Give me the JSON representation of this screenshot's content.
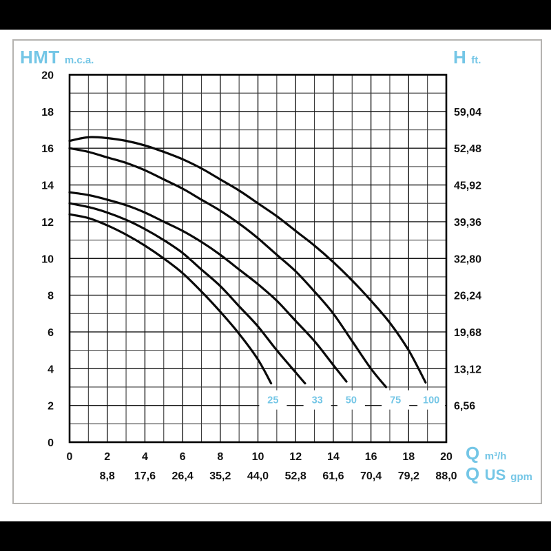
{
  "colors": {
    "accent": "#74c6e6",
    "curve": "#0a0a0a",
    "grid_minor": "#3a3a3a",
    "grid_major": "#161616",
    "plot_border": "#000000",
    "tick_text": "#111111",
    "frame_border": "#b5b3b0",
    "letterbox": "#000000",
    "background": "#ffffff"
  },
  "chart_data": {
    "type": "line",
    "description": "Pump head vs flow curves",
    "x_axis": {
      "unit": {
        "big": "Q",
        "small": "m³/h"
      },
      "range": [
        0,
        20
      ],
      "grid_step": 1,
      "ticks": [
        0,
        2,
        4,
        6,
        8,
        10,
        12,
        14,
        16,
        18,
        20
      ]
    },
    "x_axis_secondary": {
      "unit": {
        "big": "Q",
        "mid": "US",
        "small": "gpm"
      },
      "ticks": [
        {
          "q": 2,
          "label": "8,8"
        },
        {
          "q": 4,
          "label": "17,6"
        },
        {
          "q": 6,
          "label": "26,4"
        },
        {
          "q": 8,
          "label": "35,2"
        },
        {
          "q": 10,
          "label": "44,0"
        },
        {
          "q": 12,
          "label": "52,8"
        },
        {
          "q": 14,
          "label": "61,6"
        },
        {
          "q": 16,
          "label": "70,4"
        },
        {
          "q": 18,
          "label": "79,2"
        },
        {
          "q": 20,
          "label": "88,0"
        }
      ]
    },
    "y_axis_left": {
      "unit": {
        "big": "HMT",
        "small": "m.c.a."
      },
      "range": [
        0,
        20
      ],
      "grid_step": 1,
      "ticks": [
        20,
        18,
        16,
        14,
        12,
        10,
        8,
        6,
        4,
        2,
        0
      ]
    },
    "y_axis_right": {
      "unit": {
        "big": "H",
        "small": "ft."
      },
      "ticks": [
        {
          "h": 18,
          "label": "59,04"
        },
        {
          "h": 16,
          "label": "52,48"
        },
        {
          "h": 14,
          "label": "45,92"
        },
        {
          "h": 12,
          "label": "39,36"
        },
        {
          "h": 10,
          "label": "32,80"
        },
        {
          "h": 8,
          "label": "26,24"
        },
        {
          "h": 6,
          "label": "19,68"
        },
        {
          "h": 4,
          "label": "13,12"
        },
        {
          "h": 2,
          "label": "6,56"
        }
      ]
    },
    "series": [
      {
        "name": "25",
        "label_pos": [
          10.8,
          2.3
        ],
        "points": [
          [
            0,
            12.4
          ],
          [
            1,
            12.2
          ],
          [
            2,
            11.8
          ],
          [
            3,
            11.3
          ],
          [
            4,
            10.7
          ],
          [
            5,
            10.0
          ],
          [
            6,
            9.2
          ],
          [
            7,
            8.2
          ],
          [
            8,
            7.1
          ],
          [
            9,
            5.9
          ],
          [
            10,
            4.5
          ],
          [
            10.7,
            3.2
          ]
        ]
      },
      {
        "name": "33",
        "label_pos": [
          13.15,
          2.3
        ],
        "points": [
          [
            0,
            13.0
          ],
          [
            1,
            12.8
          ],
          [
            2,
            12.5
          ],
          [
            3,
            12.1
          ],
          [
            4,
            11.6
          ],
          [
            5,
            11.0
          ],
          [
            6,
            10.3
          ],
          [
            7,
            9.4
          ],
          [
            8,
            8.5
          ],
          [
            9,
            7.4
          ],
          [
            10,
            6.3
          ],
          [
            11,
            5.0
          ],
          [
            12,
            3.8
          ],
          [
            12.5,
            3.2
          ]
        ]
      },
      {
        "name": "50",
        "label_pos": [
          14.95,
          2.3
        ],
        "points": [
          [
            0,
            13.6
          ],
          [
            1,
            13.45
          ],
          [
            2,
            13.2
          ],
          [
            3,
            12.9
          ],
          [
            4,
            12.5
          ],
          [
            5,
            12.0
          ],
          [
            6,
            11.5
          ],
          [
            7,
            10.9
          ],
          [
            8,
            10.2
          ],
          [
            9,
            9.4
          ],
          [
            10,
            8.6
          ],
          [
            11,
            7.7
          ],
          [
            12,
            6.6
          ],
          [
            13,
            5.5
          ],
          [
            14,
            4.2
          ],
          [
            14.7,
            3.3
          ]
        ]
      },
      {
        "name": "75",
        "label_pos": [
          17.3,
          2.3
        ],
        "points": [
          [
            0,
            16.0
          ],
          [
            1,
            15.8
          ],
          [
            2,
            15.5
          ],
          [
            3,
            15.2
          ],
          [
            4,
            14.8
          ],
          [
            5,
            14.3
          ],
          [
            6,
            13.8
          ],
          [
            7,
            13.2
          ],
          [
            8,
            12.6
          ],
          [
            9,
            11.9
          ],
          [
            10,
            11.1
          ],
          [
            11,
            10.2
          ],
          [
            12,
            9.3
          ],
          [
            13,
            8.2
          ],
          [
            14,
            7.0
          ],
          [
            15,
            5.5
          ],
          [
            16,
            4.0
          ],
          [
            16.8,
            3.0
          ]
        ]
      },
      {
        "name": "100",
        "label_pos": [
          19.2,
          2.3
        ],
        "points": [
          [
            0,
            16.4
          ],
          [
            1,
            16.6
          ],
          [
            2,
            16.55
          ],
          [
            3,
            16.4
          ],
          [
            4,
            16.15
          ],
          [
            5,
            15.8
          ],
          [
            6,
            15.4
          ],
          [
            7,
            14.9
          ],
          [
            8,
            14.3
          ],
          [
            9,
            13.7
          ],
          [
            10,
            13.0
          ],
          [
            11,
            12.3
          ],
          [
            12,
            11.5
          ],
          [
            13,
            10.7
          ],
          [
            14,
            9.8
          ],
          [
            15,
            8.8
          ],
          [
            16,
            7.7
          ],
          [
            17,
            6.5
          ],
          [
            18,
            5.0
          ],
          [
            18.9,
            3.25
          ]
        ]
      }
    ],
    "legend_position": "inline-curve-labels",
    "grid": true
  }
}
